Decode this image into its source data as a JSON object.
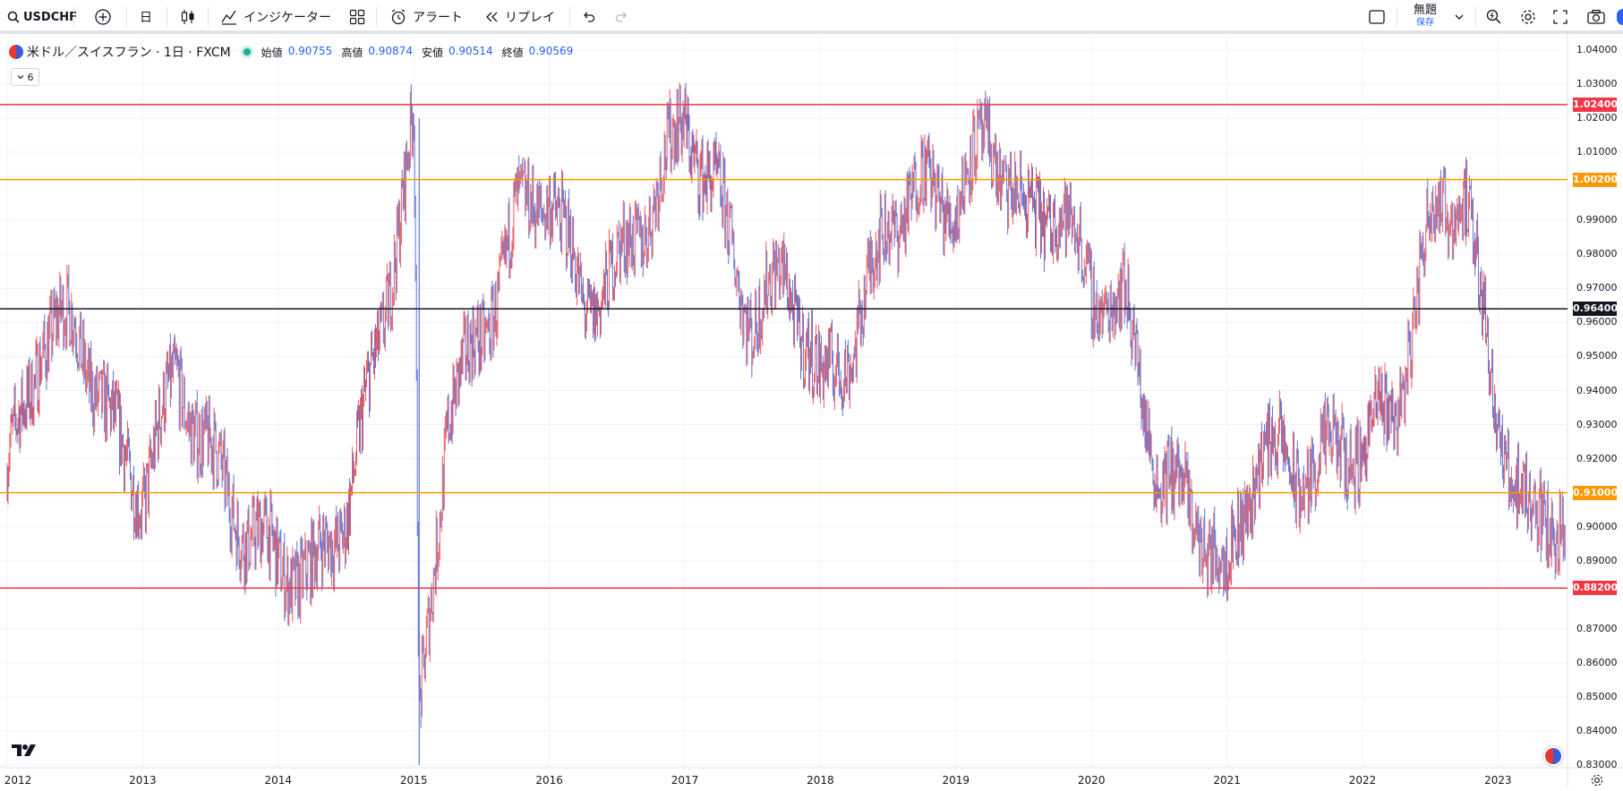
{
  "toolbar": {
    "symbol": "USDCHF",
    "interval": "日",
    "indicators_label": "インジケーター",
    "alert_label": "アラート",
    "replay_label": "リプレイ",
    "layout_name": "無題",
    "layout_status": "保存"
  },
  "legend": {
    "title": "米ドル／スイスフラン · 1日 · FXCM",
    "open_label": "始値",
    "open": "0.90755",
    "high_label": "高値",
    "high": "0.90874",
    "low_label": "安値",
    "low": "0.90514",
    "close_label": "終値",
    "close": "0.90569",
    "indicator_count": "6"
  },
  "colors": {
    "red_line": "#f23645",
    "orange_line": "#ff9800",
    "black_line": "#131722",
    "up_color": "#f0595a",
    "down_color": "#5b74d6"
  },
  "price_axis": [
    "1.04000",
    "1.03000",
    "1.02000",
    "1.01000",
    "0.99000",
    "0.98000",
    "0.97000",
    "0.96000",
    "0.95000",
    "0.94000",
    "0.93000",
    "0.92000",
    "0.90000",
    "0.89000",
    "0.87000",
    "0.86000",
    "0.85000",
    "0.84000",
    "0.83000"
  ],
  "horizontal_lines": [
    {
      "price": "1.02400",
      "value": 1.024,
      "color": "#f23645"
    },
    {
      "price": "1.00200",
      "value": 1.002,
      "color": "#ff9800"
    },
    {
      "price": "0.96400",
      "value": 0.964,
      "color": "#131722"
    },
    {
      "price": "0.91000",
      "value": 0.91,
      "color": "#ff9800"
    },
    {
      "price": "0.88200",
      "value": 0.882,
      "color": "#f23645"
    }
  ],
  "time_axis": [
    "2012",
    "2013",
    "2014",
    "2015",
    "2016",
    "2017",
    "2018",
    "2019",
    "2020",
    "2021",
    "2022",
    "2023"
  ],
  "chart_data": {
    "type": "line",
    "title": "米ドル／スイスフラン · 1日 · FXCM",
    "x": [
      "2012",
      "2012.25",
      "2012.5",
      "2012.75",
      "2013",
      "2013.25",
      "2013.5",
      "2013.75",
      "2014",
      "2014.25",
      "2014.5",
      "2014.75",
      "2015",
      "2015.04",
      "2015.25",
      "2015.5",
      "2015.75",
      "2016",
      "2016.25",
      "2016.5",
      "2016.75",
      "2017",
      "2017.25",
      "2017.5",
      "2017.75",
      "2018",
      "2018.25",
      "2018.5",
      "2018.75",
      "2019",
      "2019.25",
      "2019.5",
      "2019.75",
      "2020",
      "2020.25",
      "2020.5",
      "2020.75",
      "2021",
      "2021.25",
      "2021.5",
      "2021.75",
      "2022",
      "2022.25",
      "2022.5",
      "2022.75",
      "2023",
      "2023.25",
      "2023.5"
    ],
    "series": [
      {
        "values": [
          0.915,
          0.955,
          0.96,
          0.93,
          0.91,
          0.945,
          0.92,
          0.9,
          0.89,
          0.885,
          0.905,
          0.955,
          1.02,
          0.84,
          0.935,
          0.955,
          0.99,
          1.0,
          0.965,
          0.975,
          0.995,
          1.02,
          0.995,
          0.96,
          0.975,
          0.94,
          0.955,
          0.99,
          1.0,
          0.995,
          1.015,
          0.99,
          0.995,
          0.97,
          0.965,
          0.915,
          0.905,
          0.885,
          0.925,
          0.915,
          0.92,
          0.925,
          0.935,
          0.99,
          1.0,
          0.93,
          0.9,
          0.905
        ]
      }
    ],
    "ylim": [
      0.83,
      1.04
    ],
    "grid": true
  }
}
